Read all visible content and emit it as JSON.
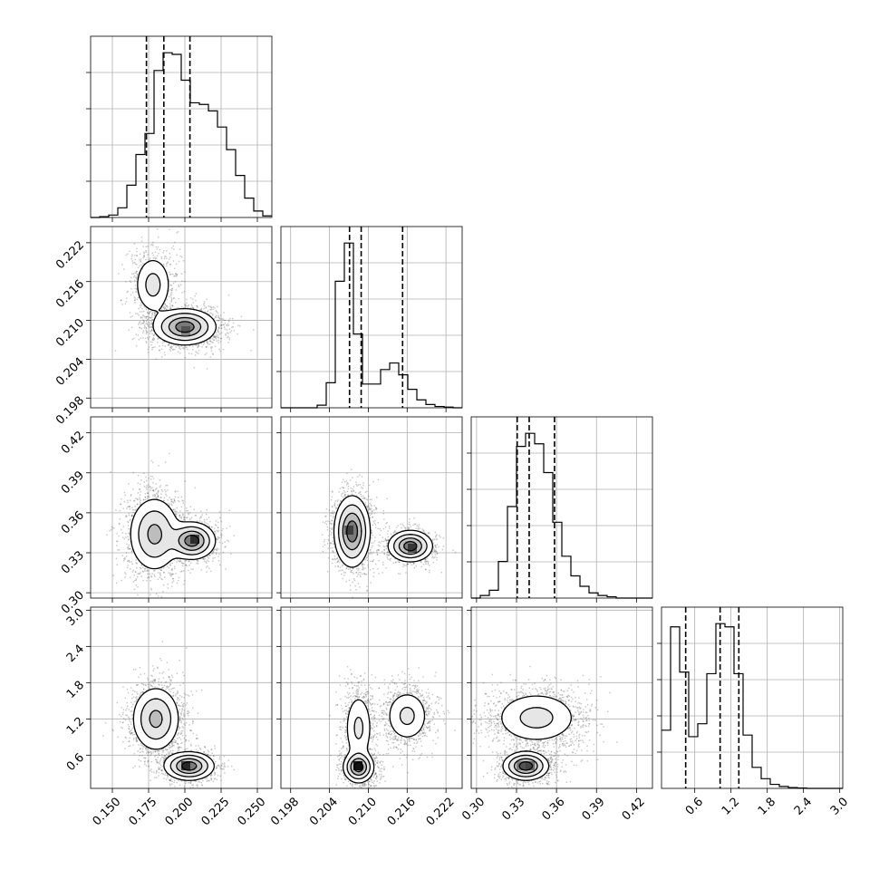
{
  "chart_data": {
    "type": "corner",
    "grid": true,
    "colors": {
      "line": "#000000",
      "grid": "#b0b0b0",
      "points": "#4d4d4d"
    },
    "parameters": [
      {
        "range": [
          0.135,
          0.26
        ],
        "ticks": [
          0.15,
          0.175,
          0.2,
          0.225,
          0.25
        ],
        "tick_labels": [
          "0.150",
          "0.175",
          "0.200",
          "0.225",
          "0.250"
        ]
      },
      {
        "range": [
          0.1965,
          0.2245
        ],
        "ticks": [
          0.198,
          0.204,
          0.21,
          0.216,
          0.222
        ],
        "tick_labels": [
          "0.198",
          "0.204",
          "0.210",
          "0.216",
          "0.222"
        ]
      },
      {
        "range": [
          0.296,
          0.432
        ],
        "ticks": [
          0.3,
          0.33,
          0.36,
          0.39,
          0.42
        ],
        "tick_labels": [
          "0.30",
          "0.33",
          "0.36",
          "0.39",
          "0.42"
        ]
      },
      {
        "range": [
          0.05,
          3.05
        ],
        "ticks": [
          0.6,
          1.2,
          1.8,
          2.4,
          3.0
        ],
        "tick_labels": [
          "0.6",
          "1.2",
          "1.8",
          "2.4",
          "3.0"
        ]
      }
    ],
    "histograms": [
      {
        "param": 0,
        "bin_start": 0.135,
        "bin_width": 0.00625,
        "counts": [
          0,
          5,
          15,
          60,
          200,
          390,
          520,
          910,
          1020,
          1010,
          850,
          710,
          700,
          660,
          560,
          420,
          260,
          120,
          40,
          10
        ],
        "quantiles": [
          0.1735,
          0.1855,
          0.2035
        ]
      },
      {
        "param": 1,
        "bin_start": 0.1965,
        "bin_width": 0.0014,
        "counts": [
          0,
          0,
          0,
          0,
          20,
          190,
          960,
          1250,
          560,
          180,
          180,
          290,
          340,
          250,
          140,
          60,
          25,
          10,
          5,
          0
        ],
        "quantiles": [
          0.2071,
          0.2089,
          0.2153
        ]
      },
      {
        "param": 2,
        "bin_start": 0.296,
        "bin_width": 0.0068,
        "counts": [
          0,
          20,
          60,
          280,
          700,
          1160,
          1260,
          1180,
          960,
          580,
          320,
          170,
          90,
          40,
          20,
          10,
          0,
          0,
          0,
          0
        ],
        "quantiles": [
          0.3305,
          0.3395,
          0.3585
        ]
      },
      {
        "param": 3,
        "bin_start": 0.05,
        "bin_width": 0.15,
        "counts": [
          360,
          1000,
          720,
          320,
          400,
          710,
          1020,
          1000,
          710,
          330,
          130,
          60,
          25,
          12,
          5,
          2,
          0,
          0,
          0,
          0
        ],
        "quantiles": [
          0.45,
          1.02,
          1.33
        ]
      }
    ],
    "pairs": [
      {
        "x": 0,
        "y": 1,
        "clusters": [
          {
            "cx": 0.178,
            "cy": 0.2155,
            "sx": 0.0065,
            "sy": 0.0023,
            "w": 0.3
          },
          {
            "cx": 0.2,
            "cy": 0.209,
            "sx": 0.01,
            "sy": 0.0013,
            "w": 0.7
          }
        ]
      },
      {
        "x": 0,
        "y": 2,
        "clusters": [
          {
            "cx": 0.179,
            "cy": 0.344,
            "sx": 0.0085,
            "sy": 0.0135,
            "w": 0.6
          },
          {
            "cx": 0.205,
            "cy": 0.339,
            "sx": 0.0075,
            "sy": 0.0065,
            "w": 0.4
          }
        ]
      },
      {
        "x": 1,
        "y": 2,
        "clusters": [
          {
            "cx": 0.2075,
            "cy": 0.346,
            "sx": 0.0013,
            "sy": 0.0125,
            "w": 0.65
          },
          {
            "cx": 0.2165,
            "cy": 0.335,
            "sx": 0.0016,
            "sy": 0.0055,
            "w": 0.35
          }
        ]
      },
      {
        "x": 0,
        "y": 3,
        "clusters": [
          {
            "cx": 0.18,
            "cy": 1.2,
            "sx": 0.008,
            "sy": 0.26,
            "w": 0.6
          },
          {
            "cx": 0.203,
            "cy": 0.42,
            "sx": 0.008,
            "sy": 0.11,
            "w": 0.4
          }
        ]
      },
      {
        "x": 1,
        "y": 3,
        "clusters": [
          {
            "cx": 0.2085,
            "cy": 1.05,
            "sx": 0.0011,
            "sy": 0.3,
            "w": 0.3
          },
          {
            "cx": 0.2085,
            "cy": 0.4,
            "sx": 0.0011,
            "sy": 0.12,
            "w": 0.35
          },
          {
            "cx": 0.216,
            "cy": 1.25,
            "sx": 0.0017,
            "sy": 0.22,
            "w": 0.35
          }
        ]
      },
      {
        "x": 2,
        "y": 3,
        "clusters": [
          {
            "cx": 0.345,
            "cy": 1.22,
            "sx": 0.016,
            "sy": 0.22,
            "w": 0.6
          },
          {
            "cx": 0.337,
            "cy": 0.42,
            "sx": 0.008,
            "sy": 0.11,
            "w": 0.4
          }
        ]
      }
    ]
  }
}
